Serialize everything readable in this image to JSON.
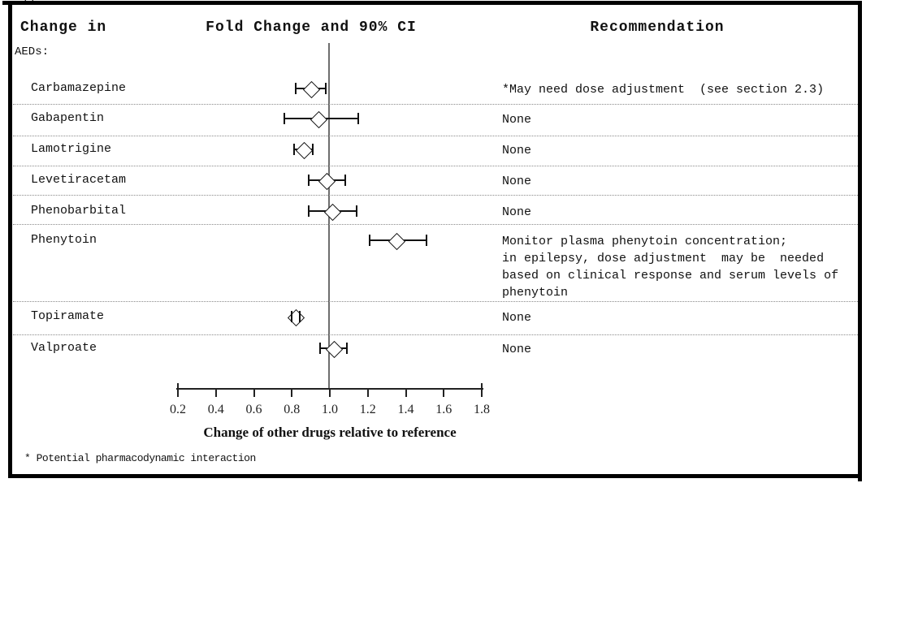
{
  "figure": {
    "header": {
      "col_change_in": "Change in",
      "col_fold_change": "Fold Change and 90% CI",
      "col_recommendation": "Recommendation"
    },
    "group_label": "AEDs:",
    "footnote": "* Potential pharmacodynamic interaction",
    "cropped_fragment": "()"
  },
  "chart_data": {
    "type": "forest",
    "title": "Fold Change and 90% CI",
    "xlabel": "Change of other drugs relative to reference",
    "x_range": [
      0.2,
      1.8
    ],
    "reference_line": 1.0,
    "grid": false,
    "ci_level": "90% CI",
    "x_tick_labels": [
      "0.2",
      "0.4",
      "0.6",
      "0.8",
      "1.0",
      "1.2",
      "1.4",
      "1.6",
      "1.8"
    ],
    "rows": [
      {
        "drug": "Carbamazepine",
        "mid": 0.9,
        "lo": 0.82,
        "hi": 0.98,
        "recommendation": "*May need dose adjustment  (see section 2.3)"
      },
      {
        "drug": "Gabapentin",
        "mid": 0.94,
        "lo": 0.76,
        "hi": 1.15,
        "recommendation": "None"
      },
      {
        "drug": "Lamotrigine",
        "mid": 0.86,
        "lo": 0.81,
        "hi": 0.91,
        "recommendation": "None"
      },
      {
        "drug": "Levetiracetam",
        "mid": 0.98,
        "lo": 0.89,
        "hi": 1.08,
        "recommendation": "None"
      },
      {
        "drug": "Phenobarbital",
        "mid": 1.01,
        "lo": 0.89,
        "hi": 1.14,
        "recommendation": "None"
      },
      {
        "drug": "Phenytoin",
        "mid": 1.35,
        "lo": 1.21,
        "hi": 1.51,
        "recommendation": "Monitor plasma phenytoin concentration;\nin epilepsy, dose adjustment  may be  needed\nbased on clinical response and serum levels of\nphenytoin"
      },
      {
        "drug": "Topiramate",
        "mid": 0.82,
        "lo": 0.8,
        "hi": 0.84,
        "recommendation": "None"
      },
      {
        "drug": "Valproate",
        "mid": 1.02,
        "lo": 0.95,
        "hi": 1.09,
        "recommendation": "None"
      }
    ]
  }
}
